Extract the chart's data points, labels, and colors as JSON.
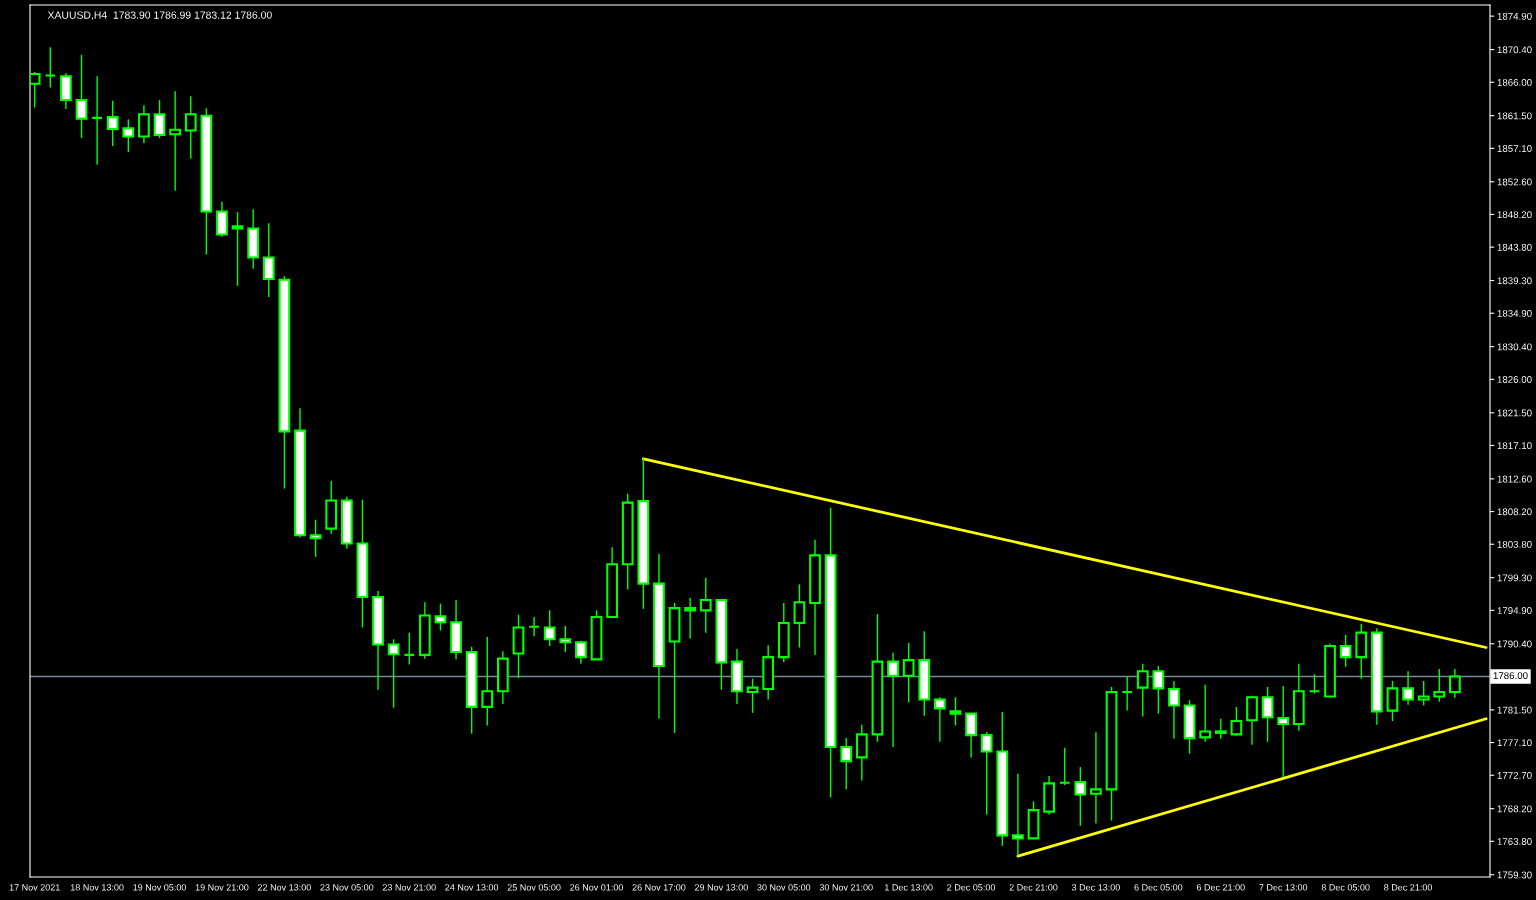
{
  "chart_data": {
    "type": "candlestick",
    "title": "XAUUSD,H4  1783.90 1786.99 1783.12 1786.00",
    "categories": [
      "17 Nov 2021",
      null,
      null,
      null,
      "18 Nov 13:00",
      null,
      null,
      null,
      "19 Nov 05:00",
      null,
      null,
      null,
      "19 Nov 21:00",
      null,
      null,
      null,
      "22 Nov 13:00",
      null,
      null,
      null,
      "23 Nov 05:00",
      null,
      null,
      null,
      "23 Nov 21:00",
      null,
      null,
      null,
      "24 Nov 13:00",
      null,
      null,
      null,
      "25 Nov 05:00",
      null,
      null,
      null,
      "26 Nov 01:00",
      null,
      null,
      null,
      "26 Nov 17:00",
      null,
      null,
      null,
      "29 Nov 13:00",
      null,
      null,
      null,
      "30 Nov 05:00",
      null,
      null,
      null,
      "30 Nov 21:00",
      null,
      null,
      null,
      "1 Dec 13:00",
      null,
      null,
      null,
      "2 Dec 05:00",
      null,
      null,
      null,
      "2 Dec 21:00",
      null,
      null,
      null,
      "3 Dec 13:00",
      null,
      null,
      null,
      "6 Dec 05:00",
      null,
      null,
      null,
      "6 Dec 21:00",
      null,
      null,
      null,
      "7 Dec 13:00",
      null,
      null,
      null,
      "8 Dec 05:00",
      null,
      null,
      null,
      "8 Dec 21:00",
      null,
      null,
      null,
      null,
      null
    ],
    "color": "#00ff00",
    "ohlc": [
      [
        1865.8,
        1867.4,
        1862.6,
        1867.1
      ],
      [
        1866.9,
        1870.7,
        1865.3,
        1866.9
      ],
      [
        1866.8,
        1867.2,
        1862.4,
        1863.6
      ],
      [
        1863.6,
        1869.7,
        1858.5,
        1861.1
      ],
      [
        1861.2,
        1866.8,
        1854.9,
        1861.2
      ],
      [
        1861.3,
        1863.5,
        1857.4,
        1859.7
      ],
      [
        1859.8,
        1861.0,
        1856.6,
        1858.7
      ],
      [
        1858.7,
        1862.9,
        1857.8,
        1861.7
      ],
      [
        1861.7,
        1863.6,
        1858.5,
        1858.9
      ],
      [
        1859.0,
        1864.8,
        1851.4,
        1859.6
      ],
      [
        1859.5,
        1864.1,
        1855.7,
        1861.7
      ],
      [
        1861.5,
        1862.5,
        1842.8,
        1848.6
      ],
      [
        1848.6,
        1849.9,
        1845.2,
        1845.5
      ],
      [
        1846.6,
        1848.5,
        1838.6,
        1846.3
      ],
      [
        1846.3,
        1848.9,
        1840.9,
        1842.4
      ],
      [
        1842.4,
        1847.0,
        1837.1,
        1839.5
      ],
      [
        1839.4,
        1839.9,
        1811.3,
        1819.0
      ],
      [
        1819.1,
        1822.1,
        1804.7,
        1805.0
      ],
      [
        1805.0,
        1807.1,
        1802.1,
        1804.6
      ],
      [
        1805.9,
        1812.3,
        1805.2,
        1809.7
      ],
      [
        1809.7,
        1810.2,
        1803.2,
        1803.9
      ],
      [
        1803.9,
        1809.8,
        1792.6,
        1796.7
      ],
      [
        1796.7,
        1797.5,
        1784.2,
        1790.3
      ],
      [
        1790.3,
        1791.0,
        1781.8,
        1789.0
      ],
      [
        1788.9,
        1791.9,
        1787.6,
        1788.9
      ],
      [
        1788.9,
        1796.0,
        1788.4,
        1794.2
      ],
      [
        1794.1,
        1795.8,
        1792.2,
        1793.3
      ],
      [
        1793.3,
        1796.3,
        1788.3,
        1789.3
      ],
      [
        1789.3,
        1790.0,
        1778.3,
        1781.9
      ],
      [
        1781.9,
        1791.3,
        1779.4,
        1784.0
      ],
      [
        1784.0,
        1789.4,
        1782.3,
        1788.4
      ],
      [
        1789.1,
        1794.3,
        1785.8,
        1792.6
      ],
      [
        1792.7,
        1794.0,
        1791.4,
        1792.7
      ],
      [
        1792.6,
        1794.9,
        1790.1,
        1791.0
      ],
      [
        1791.0,
        1792.8,
        1789.3,
        1790.6
      ],
      [
        1790.6,
        1790.8,
        1787.7,
        1788.6
      ],
      [
        1788.3,
        1794.9,
        1788.3,
        1794.0
      ],
      [
        1794.0,
        1803.4,
        1794.0,
        1801.1
      ],
      [
        1801.1,
        1810.6,
        1797.7,
        1809.4
      ],
      [
        1809.6,
        1815.3,
        1795.1,
        1798.5
      ],
      [
        1798.5,
        1802.5,
        1780.3,
        1787.4
      ],
      [
        1790.7,
        1795.9,
        1778.4,
        1795.2
      ],
      [
        1795.2,
        1796.6,
        1791.1,
        1794.9
      ],
      [
        1794.9,
        1799.3,
        1791.9,
        1796.3
      ],
      [
        1796.3,
        1796.3,
        1784.2,
        1787.9
      ],
      [
        1788.0,
        1789.7,
        1782.3,
        1784.0
      ],
      [
        1783.9,
        1785.7,
        1781.1,
        1784.5
      ],
      [
        1784.3,
        1790.2,
        1782.9,
        1788.6
      ],
      [
        1788.6,
        1795.9,
        1787.9,
        1793.2
      ],
      [
        1793.2,
        1798.4,
        1789.9,
        1796.0
      ],
      [
        1795.9,
        1804.4,
        1788.9,
        1802.3
      ],
      [
        1802.3,
        1808.7,
        1769.7,
        1776.5
      ],
      [
        1776.5,
        1777.7,
        1770.8,
        1774.6
      ],
      [
        1775.1,
        1779.5,
        1772.0,
        1778.2
      ],
      [
        1778.2,
        1794.4,
        1777.2,
        1788.0
      ],
      [
        1788.0,
        1789.2,
        1776.5,
        1786.1
      ],
      [
        1786.1,
        1790.5,
        1782.5,
        1788.2
      ],
      [
        1788.2,
        1792.1,
        1780.7,
        1782.9
      ],
      [
        1782.9,
        1783.2,
        1777.2,
        1781.7
      ],
      [
        1781.3,
        1783.2,
        1779.4,
        1781.0
      ],
      [
        1781.0,
        1781.0,
        1775.1,
        1778.1
      ],
      [
        1778.1,
        1778.5,
        1767.4,
        1775.9
      ],
      [
        1775.9,
        1781.2,
        1763.2,
        1764.6
      ],
      [
        1764.6,
        1772.9,
        1761.9,
        1764.2
      ],
      [
        1764.2,
        1769.2,
        1764.2,
        1768.0
      ],
      [
        1767.8,
        1772.6,
        1767.4,
        1771.6
      ],
      [
        1771.7,
        1776.4,
        1771.4,
        1771.7
      ],
      [
        1771.8,
        1773.8,
        1765.9,
        1770.1
      ],
      [
        1770.2,
        1778.5,
        1766.2,
        1770.8
      ],
      [
        1770.8,
        1784.6,
        1766.6,
        1783.9
      ],
      [
        1783.9,
        1786.0,
        1781.4,
        1783.9
      ],
      [
        1784.5,
        1787.7,
        1780.6,
        1786.7
      ],
      [
        1786.7,
        1787.4,
        1781.0,
        1784.4
      ],
      [
        1784.3,
        1785.4,
        1777.6,
        1782.1
      ],
      [
        1782.1,
        1782.8,
        1775.6,
        1777.7
      ],
      [
        1777.8,
        1784.9,
        1777.2,
        1778.6
      ],
      [
        1778.6,
        1780.3,
        1777.6,
        1778.4
      ],
      [
        1778.2,
        1781.9,
        1778.0,
        1780.0
      ],
      [
        1780.1,
        1783.4,
        1776.8,
        1783.2
      ],
      [
        1783.2,
        1784.6,
        1777.2,
        1780.5
      ],
      [
        1780.4,
        1784.7,
        1772.4,
        1779.6
      ],
      [
        1779.6,
        1787.7,
        1778.7,
        1784.0
      ],
      [
        1784.0,
        1786.3,
        1783.7,
        1784.0
      ],
      [
        1783.3,
        1790.4,
        1783.3,
        1790.1
      ],
      [
        1790.1,
        1791.6,
        1787.3,
        1788.6
      ],
      [
        1788.6,
        1793.1,
        1785.7,
        1791.9
      ],
      [
        1791.9,
        1792.5,
        1779.5,
        1781.3
      ],
      [
        1781.4,
        1785.4,
        1780.0,
        1784.4
      ],
      [
        1784.4,
        1786.7,
        1782.2,
        1782.9
      ],
      [
        1782.9,
        1785.4,
        1782.1,
        1783.3
      ],
      [
        1783.3,
        1787.0,
        1782.6,
        1783.9
      ],
      [
        1783.9,
        1786.99,
        1783.12,
        1786.0
      ],
      null,
      null
    ],
    "series": [
      {
        "type": "line",
        "color": "#ffff00",
        "values": [
          null,
          null,
          null,
          null,
          null,
          null,
          null,
          null,
          null,
          null,
          null,
          null,
          null,
          null,
          null,
          null,
          null,
          null,
          null,
          null,
          null,
          null,
          null,
          null,
          null,
          null,
          null,
          null,
          null,
          null,
          null,
          null,
          null,
          null,
          null,
          null,
          null,
          null,
          null,
          1815.3,
          null,
          null,
          null,
          null,
          null,
          null,
          null,
          null,
          null,
          null,
          null,
          null,
          null,
          null,
          null,
          null,
          null,
          null,
          null,
          null,
          null,
          null,
          null,
          null,
          null,
          null,
          null,
          null,
          null,
          null,
          null,
          null,
          null,
          null,
          null,
          null,
          null,
          null,
          null,
          null,
          null,
          null,
          null,
          null,
          null,
          null,
          null,
          null,
          null,
          null,
          null,
          null,
          null,
          1789.9
        ]
      },
      {
        "type": "line",
        "color": "#ffff00",
        "values": [
          null,
          null,
          null,
          null,
          null,
          null,
          null,
          null,
          null,
          null,
          null,
          null,
          null,
          null,
          null,
          null,
          null,
          null,
          null,
          null,
          null,
          null,
          null,
          null,
          null,
          null,
          null,
          null,
          null,
          null,
          null,
          null,
          null,
          null,
          null,
          null,
          null,
          null,
          null,
          null,
          null,
          null,
          null,
          null,
          null,
          null,
          null,
          null,
          null,
          null,
          null,
          null,
          null,
          null,
          null,
          null,
          null,
          null,
          null,
          null,
          null,
          null,
          null,
          1761.8,
          null,
          null,
          null,
          null,
          null,
          null,
          null,
          null,
          null,
          null,
          null,
          null,
          null,
          null,
          null,
          null,
          null,
          null,
          null,
          null,
          null,
          null,
          null,
          null,
          null,
          null,
          null,
          null,
          null,
          1780.3
        ]
      }
    ],
    "ylim": [
      1759.0,
      1876.4
    ],
    "yticks": [
      {
        "value": 1874.9,
        "label": "1874.90"
      },
      {
        "value": 1870.4,
        "label": "1870.40"
      },
      {
        "value": 1866.0,
        "label": "1866.00"
      },
      {
        "value": 1861.5,
        "label": "1861.50"
      },
      {
        "value": 1857.1,
        "label": "1857.10"
      },
      {
        "value": 1852.6,
        "label": "1852.60"
      },
      {
        "value": 1848.2,
        "label": "1848.20"
      },
      {
        "value": 1843.8,
        "label": "1843.80"
      },
      {
        "value": 1839.3,
        "label": "1839.30"
      },
      {
        "value": 1834.9,
        "label": "1834.90"
      },
      {
        "value": 1830.4,
        "label": "1830.40"
      },
      {
        "value": 1826.0,
        "label": "1826.00"
      },
      {
        "value": 1821.5,
        "label": "1821.50"
      },
      {
        "value": 1817.1,
        "label": "1817.10"
      },
      {
        "value": 1812.6,
        "label": "1812.60"
      },
      {
        "value": 1808.2,
        "label": "1808.20"
      },
      {
        "value": 1803.8,
        "label": "1803.80"
      },
      {
        "value": 1799.3,
        "label": "1799.30"
      },
      {
        "value": 1794.9,
        "label": "1794.90"
      },
      {
        "value": 1790.4,
        "label": "1790.40"
      },
      {
        "value": 1781.5,
        "label": "1781.50"
      },
      {
        "value": 1777.1,
        "label": "1777.10"
      },
      {
        "value": 1772.7,
        "label": "1772.70"
      },
      {
        "value": 1768.2,
        "label": "1768.20"
      },
      {
        "value": 1763.8,
        "label": "1763.80"
      },
      {
        "value": 1759.3,
        "label": "1759.30"
      }
    ],
    "ref_lines": [
      {
        "axis": "y",
        "value": 1786.0,
        "label": "1786.00",
        "color": "#778899"
      }
    ],
    "grid": false,
    "legend": false
  }
}
